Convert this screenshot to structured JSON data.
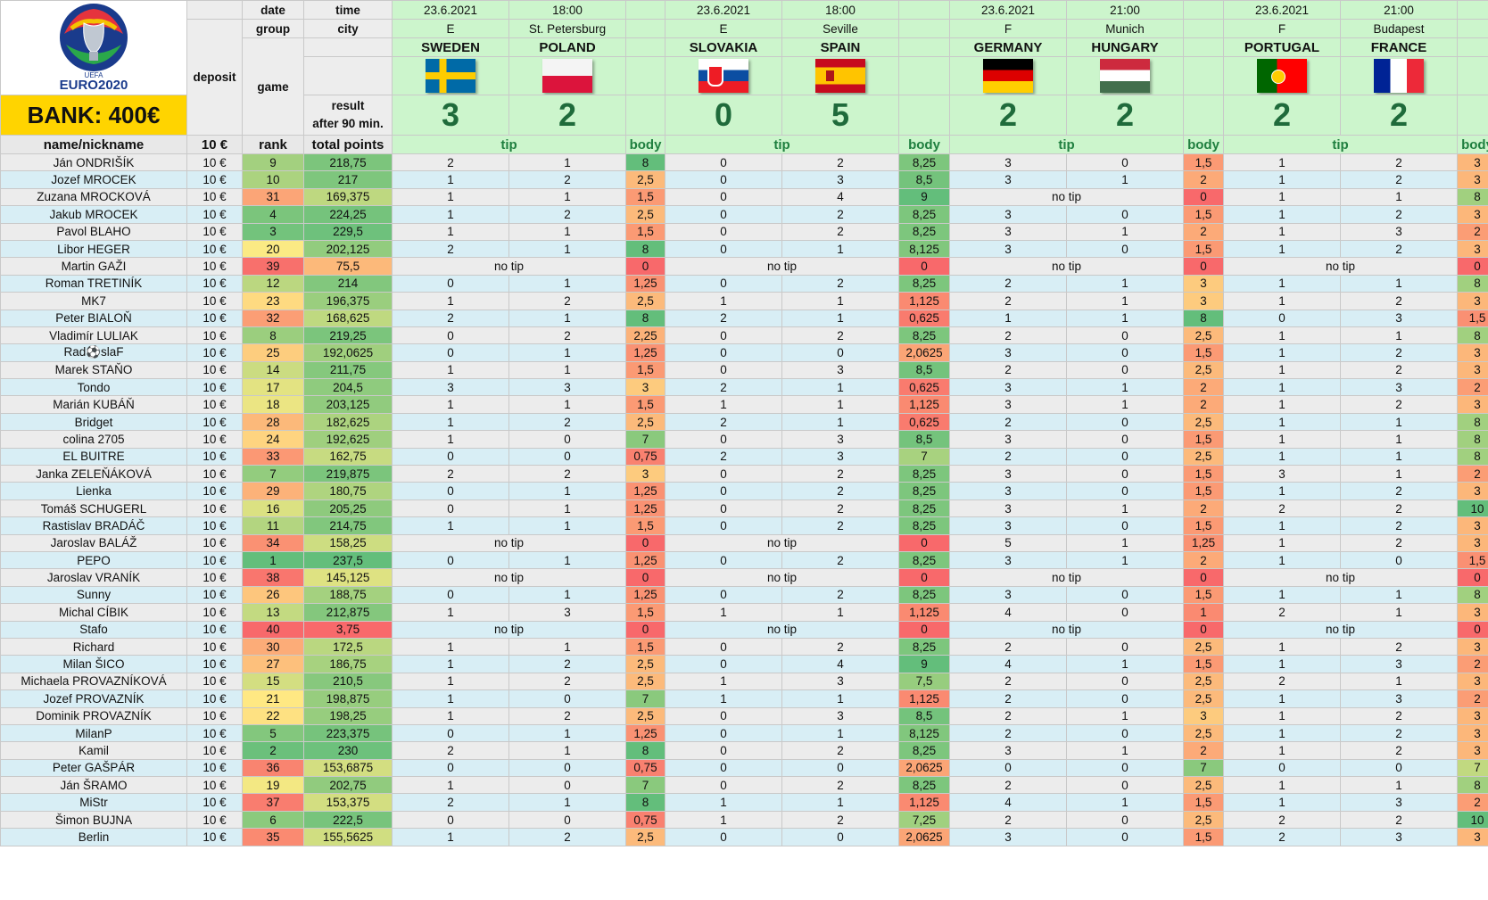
{
  "header": {
    "labels": {
      "date": "date",
      "time": "time",
      "group": "group",
      "city": "city",
      "deposit": "deposit",
      "game": "game",
      "result": "result",
      "after90": "after 90 min.",
      "name": "name/nickname",
      "deposit_amt": "10 €",
      "rank": "rank",
      "total": "total points",
      "tip": "tip",
      "body": "body"
    },
    "bank": "BANK: 400€",
    "logo_text": "EURO2020",
    "logo_small": "UEFA"
  },
  "matches": [
    {
      "date": "23.6.2021",
      "time": "18:00",
      "group": "E",
      "city": "St. Petersburg",
      "home": "SWEDEN",
      "away": "POLAND",
      "home_flag": "sweden-flag-icon",
      "away_flag": "poland-flag-icon",
      "home_score": "3",
      "away_score": "2"
    },
    {
      "date": "23.6.2021",
      "time": "18:00",
      "group": "E",
      "city": "Seville",
      "home": "SLOVAKIA",
      "away": "SPAIN",
      "home_flag": "slovakia-flag-icon",
      "away_flag": "spain-flag-icon",
      "home_score": "0",
      "away_score": "5"
    },
    {
      "date": "23.6.2021",
      "time": "21:00",
      "group": "F",
      "city": "Munich",
      "home": "GERMANY",
      "away": "HUNGARY",
      "home_flag": "germany-flag-icon",
      "away_flag": "hungary-flag-icon",
      "home_score": "2",
      "away_score": "2"
    },
    {
      "date": "23.6.2021",
      "time": "21:00",
      "group": "F",
      "city": "Budapest",
      "home": "PORTUGAL",
      "away": "FRANCE",
      "home_flag": "portugal-flag-icon",
      "away_flag": "france-flag-icon",
      "home_score": "2",
      "away_score": "2"
    }
  ],
  "colors": {
    "green_best": "#63be7b",
    "yellow_mid": "#ffeb84",
    "red_worst": "#f8696b"
  },
  "no_tip": "no tip",
  "rows": [
    {
      "name": "Ján ONDRIŠÍK",
      "dep": "10 €",
      "rank": "9",
      "total": "218,75",
      "m": [
        [
          "2",
          "1",
          "8"
        ],
        [
          "0",
          "2",
          "8,25"
        ],
        [
          "3",
          "0",
          "1,5"
        ],
        [
          "1",
          "2",
          "3"
        ]
      ]
    },
    {
      "name": "Jozef MROCEK",
      "dep": "10 €",
      "rank": "10",
      "total": "217",
      "m": [
        [
          "1",
          "2",
          "2,5"
        ],
        [
          "0",
          "3",
          "8,5"
        ],
        [
          "3",
          "1",
          "2"
        ],
        [
          "1",
          "2",
          "3"
        ]
      ]
    },
    {
      "name": "Zuzana MROCKOVÁ",
      "dep": "10 €",
      "rank": "31",
      "total": "169,375",
      "m": [
        [
          "1",
          "1",
          "1,5"
        ],
        [
          "0",
          "4",
          "9"
        ],
        [
          "",
          "",
          "0"
        ],
        [
          "1",
          "1",
          "8"
        ]
      ]
    },
    {
      "name": "Jakub MROCEK",
      "dep": "10 €",
      "rank": "4",
      "total": "224,25",
      "m": [
        [
          "1",
          "2",
          "2,5"
        ],
        [
          "0",
          "2",
          "8,25"
        ],
        [
          "3",
          "0",
          "1,5"
        ],
        [
          "1",
          "2",
          "3"
        ]
      ]
    },
    {
      "name": "Pavol BLAHO",
      "dep": "10 €",
      "rank": "3",
      "total": "229,5",
      "m": [
        [
          "1",
          "1",
          "1,5"
        ],
        [
          "0",
          "2",
          "8,25"
        ],
        [
          "3",
          "1",
          "2"
        ],
        [
          "1",
          "3",
          "2"
        ]
      ]
    },
    {
      "name": "Libor HEGER",
      "dep": "10 €",
      "rank": "20",
      "total": "202,125",
      "m": [
        [
          "2",
          "1",
          "8"
        ],
        [
          "0",
          "1",
          "8,125"
        ],
        [
          "3",
          "0",
          "1,5"
        ],
        [
          "1",
          "2",
          "3"
        ]
      ]
    },
    {
      "name": "Martin GAŽI",
      "dep": "10 €",
      "rank": "39",
      "total": "75,5",
      "m": [
        [
          "",
          "",
          "0"
        ],
        [
          "",
          "",
          "0"
        ],
        [
          "",
          "",
          "0"
        ],
        [
          "",
          "",
          "0"
        ]
      ]
    },
    {
      "name": "Roman TRETINÍK",
      "dep": "10 €",
      "rank": "12",
      "total": "214",
      "m": [
        [
          "0",
          "1",
          "1,25"
        ],
        [
          "0",
          "2",
          "8,25"
        ],
        [
          "2",
          "1",
          "3"
        ],
        [
          "1",
          "1",
          "8"
        ]
      ]
    },
    {
      "name": "MK7",
      "dep": "10 €",
      "rank": "23",
      "total": "196,375",
      "m": [
        [
          "1",
          "2",
          "2,5"
        ],
        [
          "1",
          "1",
          "1,125"
        ],
        [
          "2",
          "1",
          "3"
        ],
        [
          "1",
          "2",
          "3"
        ]
      ]
    },
    {
      "name": "Peter BIALOŇ",
      "dep": "10 €",
      "rank": "32",
      "total": "168,625",
      "m": [
        [
          "2",
          "1",
          "8"
        ],
        [
          "2",
          "1",
          "0,625"
        ],
        [
          "1",
          "1",
          "8"
        ],
        [
          "0",
          "3",
          "1,5"
        ]
      ]
    },
    {
      "name": "Vladimír LULIAK",
      "dep": "10 €",
      "rank": "8",
      "total": "219,25",
      "m": [
        [
          "0",
          "2",
          "2,25"
        ],
        [
          "0",
          "2",
          "8,25"
        ],
        [
          "2",
          "0",
          "2,5"
        ],
        [
          "1",
          "1",
          "8"
        ]
      ]
    },
    {
      "name": "Rad⚽slaF",
      "dep": "10 €",
      "rank": "25",
      "total": "192,0625",
      "m": [
        [
          "0",
          "1",
          "1,25"
        ],
        [
          "0",
          "0",
          "2,0625"
        ],
        [
          "3",
          "0",
          "1,5"
        ],
        [
          "1",
          "2",
          "3"
        ]
      ]
    },
    {
      "name": "Marek STAŇO",
      "dep": "10 €",
      "rank": "14",
      "total": "211,75",
      "m": [
        [
          "1",
          "1",
          "1,5"
        ],
        [
          "0",
          "3",
          "8,5"
        ],
        [
          "2",
          "0",
          "2,5"
        ],
        [
          "1",
          "2",
          "3"
        ]
      ]
    },
    {
      "name": "Tondo",
      "dep": "10 €",
      "rank": "17",
      "total": "204,5",
      "m": [
        [
          "3",
          "3",
          "3"
        ],
        [
          "2",
          "1",
          "0,625"
        ],
        [
          "3",
          "1",
          "2"
        ],
        [
          "1",
          "3",
          "2"
        ]
      ]
    },
    {
      "name": "Marián KUBÁŇ",
      "dep": "10 €",
      "rank": "18",
      "total": "203,125",
      "m": [
        [
          "1",
          "1",
          "1,5"
        ],
        [
          "1",
          "1",
          "1,125"
        ],
        [
          "3",
          "1",
          "2"
        ],
        [
          "1",
          "2",
          "3"
        ]
      ]
    },
    {
      "name": "Bridget",
      "dep": "10 €",
      "rank": "28",
      "total": "182,625",
      "m": [
        [
          "1",
          "2",
          "2,5"
        ],
        [
          "2",
          "1",
          "0,625"
        ],
        [
          "2",
          "0",
          "2,5"
        ],
        [
          "1",
          "1",
          "8"
        ]
      ]
    },
    {
      "name": "colina 2705",
      "dep": "10 €",
      "rank": "24",
      "total": "192,625",
      "m": [
        [
          "1",
          "0",
          "7"
        ],
        [
          "0",
          "3",
          "8,5"
        ],
        [
          "3",
          "0",
          "1,5"
        ],
        [
          "1",
          "1",
          "8"
        ]
      ]
    },
    {
      "name": "EL BUITRE",
      "dep": "10 €",
      "rank": "33",
      "total": "162,75",
      "m": [
        [
          "0",
          "0",
          "0,75"
        ],
        [
          "2",
          "3",
          "7"
        ],
        [
          "2",
          "0",
          "2,5"
        ],
        [
          "1",
          "1",
          "8"
        ]
      ]
    },
    {
      "name": "Janka ZELEŇÁKOVÁ",
      "dep": "10 €",
      "rank": "7",
      "total": "219,875",
      "m": [
        [
          "2",
          "2",
          "3"
        ],
        [
          "0",
          "2",
          "8,25"
        ],
        [
          "3",
          "0",
          "1,5"
        ],
        [
          "3",
          "1",
          "2"
        ]
      ]
    },
    {
      "name": "Lienka",
      "dep": "10 €",
      "rank": "29",
      "total": "180,75",
      "m": [
        [
          "0",
          "1",
          "1,25"
        ],
        [
          "0",
          "2",
          "8,25"
        ],
        [
          "3",
          "0",
          "1,5"
        ],
        [
          "1",
          "2",
          "3"
        ]
      ]
    },
    {
      "name": "Tomáš SCHUGERL",
      "dep": "10 €",
      "rank": "16",
      "total": "205,25",
      "m": [
        [
          "0",
          "1",
          "1,25"
        ],
        [
          "0",
          "2",
          "8,25"
        ],
        [
          "3",
          "1",
          "2"
        ],
        [
          "2",
          "2",
          "10"
        ]
      ]
    },
    {
      "name": "Rastislav BRADÁČ",
      "dep": "10 €",
      "rank": "11",
      "total": "214,75",
      "m": [
        [
          "1",
          "1",
          "1,5"
        ],
        [
          "0",
          "2",
          "8,25"
        ],
        [
          "3",
          "0",
          "1,5"
        ],
        [
          "1",
          "2",
          "3"
        ]
      ]
    },
    {
      "name": "Jaroslav BALÁŽ",
      "dep": "10 €",
      "rank": "34",
      "total": "158,25",
      "m": [
        [
          "",
          "",
          "0"
        ],
        [
          "",
          "",
          "0"
        ],
        [
          "5",
          "1",
          "1,25"
        ],
        [
          "1",
          "2",
          "3"
        ]
      ]
    },
    {
      "name": "PEPO",
      "dep": "10 €",
      "rank": "1",
      "total": "237,5",
      "m": [
        [
          "0",
          "1",
          "1,25"
        ],
        [
          "0",
          "2",
          "8,25"
        ],
        [
          "3",
          "1",
          "2"
        ],
        [
          "1",
          "0",
          "1,5"
        ]
      ]
    },
    {
      "name": "Jaroslav VRANÍK",
      "dep": "10 €",
      "rank": "38",
      "total": "145,125",
      "m": [
        [
          "",
          "",
          "0"
        ],
        [
          "",
          "",
          "0"
        ],
        [
          "",
          "",
          "0"
        ],
        [
          "",
          "",
          "0"
        ]
      ]
    },
    {
      "name": "Sunny",
      "dep": "10 €",
      "rank": "26",
      "total": "188,75",
      "m": [
        [
          "0",
          "1",
          "1,25"
        ],
        [
          "0",
          "2",
          "8,25"
        ],
        [
          "3",
          "0",
          "1,5"
        ],
        [
          "1",
          "1",
          "8"
        ]
      ]
    },
    {
      "name": "Michal CÍBIK",
      "dep": "10 €",
      "rank": "13",
      "total": "212,875",
      "m": [
        [
          "1",
          "3",
          "1,5"
        ],
        [
          "1",
          "1",
          "1,125"
        ],
        [
          "4",
          "0",
          "1"
        ],
        [
          "2",
          "1",
          "3"
        ]
      ]
    },
    {
      "name": "Stafo",
      "dep": "10 €",
      "rank": "40",
      "total": "3,75",
      "m": [
        [
          "",
          "",
          "0"
        ],
        [
          "",
          "",
          "0"
        ],
        [
          "",
          "",
          "0"
        ],
        [
          "",
          "",
          "0"
        ]
      ]
    },
    {
      "name": "Richard",
      "dep": "10 €",
      "rank": "30",
      "total": "172,5",
      "m": [
        [
          "1",
          "1",
          "1,5"
        ],
        [
          "0",
          "2",
          "8,25"
        ],
        [
          "2",
          "0",
          "2,5"
        ],
        [
          "1",
          "2",
          "3"
        ]
      ]
    },
    {
      "name": "Milan ŠICO",
      "dep": "10 €",
      "rank": "27",
      "total": "186,75",
      "m": [
        [
          "1",
          "2",
          "2,5"
        ],
        [
          "0",
          "4",
          "9"
        ],
        [
          "4",
          "1",
          "1,5"
        ],
        [
          "1",
          "3",
          "2"
        ]
      ]
    },
    {
      "name": "Michaela PROVAZNÍKOVÁ",
      "dep": "10 €",
      "rank": "15",
      "total": "210,5",
      "m": [
        [
          "1",
          "2",
          "2,5"
        ],
        [
          "1",
          "3",
          "7,5"
        ],
        [
          "2",
          "0",
          "2,5"
        ],
        [
          "2",
          "1",
          "3"
        ]
      ]
    },
    {
      "name": "Jozef PROVAZNÍK",
      "dep": "10 €",
      "rank": "21",
      "total": "198,875",
      "m": [
        [
          "1",
          "0",
          "7"
        ],
        [
          "1",
          "1",
          "1,125"
        ],
        [
          "2",
          "0",
          "2,5"
        ],
        [
          "1",
          "3",
          "2"
        ]
      ]
    },
    {
      "name": "Dominik PROVAZNÍK",
      "dep": "10 €",
      "rank": "22",
      "total": "198,25",
      "m": [
        [
          "1",
          "2",
          "2,5"
        ],
        [
          "0",
          "3",
          "8,5"
        ],
        [
          "2",
          "1",
          "3"
        ],
        [
          "1",
          "2",
          "3"
        ]
      ]
    },
    {
      "name": "MilanP",
      "dep": "10 €",
      "rank": "5",
      "total": "223,375",
      "m": [
        [
          "0",
          "1",
          "1,25"
        ],
        [
          "0",
          "1",
          "8,125"
        ],
        [
          "2",
          "0",
          "2,5"
        ],
        [
          "1",
          "2",
          "3"
        ]
      ]
    },
    {
      "name": "Kamil",
      "dep": "10 €",
      "rank": "2",
      "total": "230",
      "m": [
        [
          "2",
          "1",
          "8"
        ],
        [
          "0",
          "2",
          "8,25"
        ],
        [
          "3",
          "1",
          "2"
        ],
        [
          "1",
          "2",
          "3"
        ]
      ]
    },
    {
      "name": "Peter GAŠPÁR",
      "dep": "10 €",
      "rank": "36",
      "total": "153,6875",
      "m": [
        [
          "0",
          "0",
          "0,75"
        ],
        [
          "0",
          "0",
          "2,0625"
        ],
        [
          "0",
          "0",
          "7"
        ],
        [
          "0",
          "0",
          "7"
        ]
      ]
    },
    {
      "name": "Ján ŠRAMO",
      "dep": "10 €",
      "rank": "19",
      "total": "202,75",
      "m": [
        [
          "1",
          "0",
          "7"
        ],
        [
          "0",
          "2",
          "8,25"
        ],
        [
          "2",
          "0",
          "2,5"
        ],
        [
          "1",
          "1",
          "8"
        ]
      ]
    },
    {
      "name": "MiStr",
      "dep": "10 €",
      "rank": "37",
      "total": "153,375",
      "m": [
        [
          "2",
          "1",
          "8"
        ],
        [
          "1",
          "1",
          "1,125"
        ],
        [
          "4",
          "1",
          "1,5"
        ],
        [
          "1",
          "3",
          "2"
        ]
      ]
    },
    {
      "name": "Šimon BUJNA",
      "dep": "10 €",
      "rank": "6",
      "total": "222,5",
      "m": [
        [
          "0",
          "0",
          "0,75"
        ],
        [
          "1",
          "2",
          "7,25"
        ],
        [
          "2",
          "0",
          "2,5"
        ],
        [
          "2",
          "2",
          "10"
        ]
      ]
    },
    {
      "name": "Berlin",
      "dep": "10 €",
      "rank": "35",
      "total": "155,5625",
      "m": [
        [
          "1",
          "2",
          "2,5"
        ],
        [
          "0",
          "0",
          "2,0625"
        ],
        [
          "3",
          "0",
          "1,5"
        ],
        [
          "2",
          "3",
          "3"
        ]
      ]
    }
  ]
}
